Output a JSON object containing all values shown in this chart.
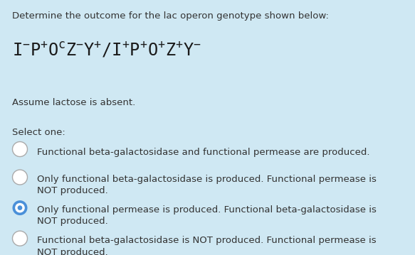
{
  "background_color": "#cfe8f3",
  "title_text": "Determine the outcome for the lac operon genotype shown below:",
  "title_fontsize": 9.5,
  "genotype_fontsize": 17,
  "assume_text": "Assume lactose is absent.",
  "assume_fontsize": 9.5,
  "select_text": "Select one:",
  "select_fontsize": 9.5,
  "options": [
    "Functional beta-galactosidase and functional permease are produced.",
    "Only functional beta-galactosidase is produced. Functional permease is\nNOT produced.",
    "Only functional permease is produced. Functional beta-galactosidase is\nNOT produced.",
    "Functional beta-galactosidase is NOT produced. Functional permease is\nNOT produced."
  ],
  "option_fontsize": 9.5,
  "selected_index": 2,
  "text_color": "#333333",
  "radio_color_selected": "#4a90d9",
  "radio_color_empty_edge": "#aaaaaa"
}
